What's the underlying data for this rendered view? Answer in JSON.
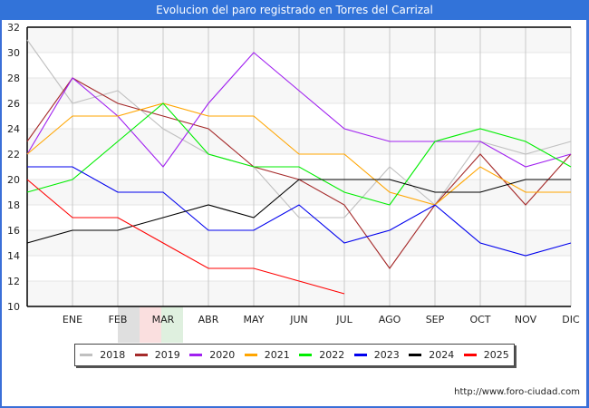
{
  "title": "Evolucion del paro registrado en Torres del Carrizal",
  "footer": "http://www.foro-ciudad.com",
  "colors": {
    "title_bar": "#3273d9",
    "plot_band": "#f7f7f7",
    "grid": "#c8c8c8"
  },
  "chart_data": {
    "type": "line",
    "title": "Evolucion del paro registrado en Torres del Carrizal",
    "xlabel": "",
    "ylabel": "",
    "ylim": [
      10,
      32
    ],
    "yticks": [
      10,
      12,
      14,
      16,
      18,
      20,
      22,
      24,
      26,
      28,
      30,
      32
    ],
    "categories": [
      "",
      "ENE",
      "FEB",
      "MAR",
      "ABR",
      "MAY",
      "JUN",
      "JUL",
      "AGO",
      "SEP",
      "OCT",
      "NOV",
      "DIC"
    ],
    "grid": true,
    "legend_position": "bottom",
    "series": [
      {
        "name": "2018",
        "color": "#c0c0c0",
        "values": [
          31,
          26,
          27,
          24,
          22,
          21,
          17,
          17,
          21,
          18,
          23,
          22,
          23
        ]
      },
      {
        "name": "2019",
        "color": "#a52a2a",
        "values": [
          23,
          28,
          26,
          25,
          24,
          21,
          20,
          18,
          13,
          18,
          22,
          18,
          22
        ]
      },
      {
        "name": "2020",
        "color": "#a020f0",
        "values": [
          22,
          28,
          25,
          21,
          26,
          30,
          27,
          24,
          23,
          23,
          23,
          21,
          22
        ]
      },
      {
        "name": "2021",
        "color": "#ffa500",
        "values": [
          22,
          25,
          25,
          26,
          25,
          25,
          22,
          22,
          19,
          18,
          21,
          19,
          19
        ]
      },
      {
        "name": "2022",
        "color": "#00ee00",
        "values": [
          19,
          20,
          23,
          26,
          22,
          21,
          21,
          19,
          18,
          23,
          24,
          23,
          21
        ]
      },
      {
        "name": "2023",
        "color": "#0000ee",
        "values": [
          21,
          21,
          19,
          19,
          16,
          16,
          18,
          15,
          16,
          18,
          15,
          14,
          15
        ]
      },
      {
        "name": "2024",
        "color": "#000000",
        "values": [
          15,
          16,
          16,
          17,
          18,
          17,
          20,
          20,
          20,
          19,
          19,
          20,
          20
        ]
      },
      {
        "name": "2025",
        "color": "#ff0000",
        "values": [
          20,
          17,
          17,
          15,
          13,
          13,
          12,
          11,
          null,
          null,
          null,
          null,
          null
        ]
      }
    ]
  }
}
